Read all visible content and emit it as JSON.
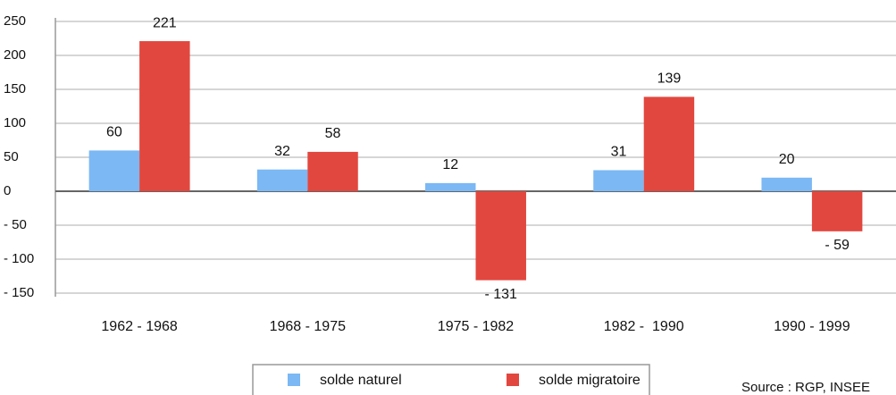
{
  "chart_data": {
    "type": "bar",
    "categories": [
      "1962 - 1968",
      "1968 - 1975",
      "1975 - 1982",
      "1982 -  1990",
      "1990 - 1999"
    ],
    "series": [
      {
        "name": "solde naturel",
        "color": "#7bb8f4",
        "values": [
          60,
          32,
          12,
          31,
          20
        ]
      },
      {
        "name": "solde migratoire",
        "color": "#e2473f",
        "values": [
          221,
          58,
          -131,
          139,
          -59
        ],
        "value_labels": [
          "221",
          "58",
          "- 131",
          "139",
          "- 59"
        ]
      }
    ],
    "ylim": [
      -150,
      250
    ],
    "yticks": [
      {
        "value": -150,
        "label": "- 150"
      },
      {
        "value": -100,
        "label": "- 100"
      },
      {
        "value": -50,
        "label": "- 50"
      },
      0,
      50,
      100,
      150,
      200,
      250
    ],
    "grid": true,
    "legend": "bottom",
    "source": "Source : RGP, INSEE"
  }
}
